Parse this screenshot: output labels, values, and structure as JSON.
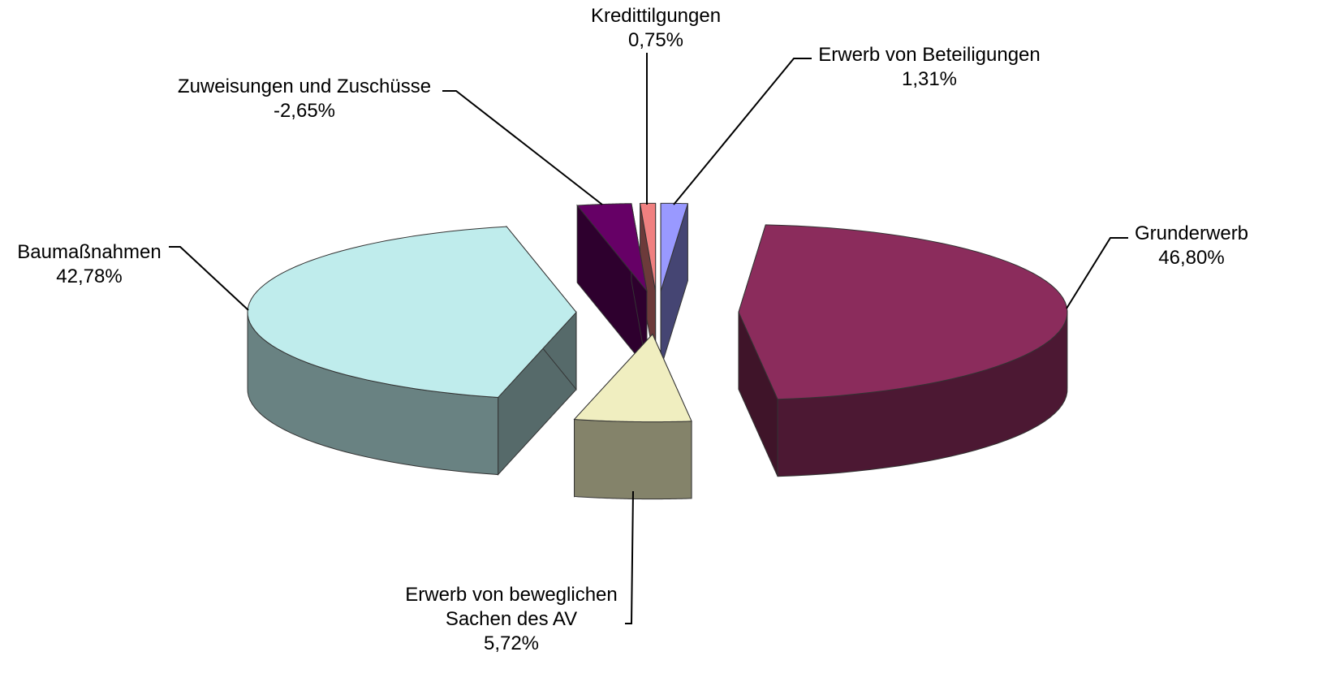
{
  "chart_data": {
    "type": "pie3d",
    "categories": [
      "Erwerb von Beteiligungen",
      "Grunderwerb",
      "Erwerb von beweglichen Sachen des AV",
      "Baumaßnahmen",
      "Zuweisungen und Zuschüsse",
      "Kredittilgungen"
    ],
    "values": [
      1.31,
      46.8,
      5.72,
      42.78,
      -2.65,
      0.75
    ],
    "value_labels": [
      "1,31%",
      "46,80%",
      "5,72%",
      "42,78%",
      "-2,65%",
      "0,75%"
    ],
    "colors": [
      "#9999ff",
      "#8b2c5c",
      "#f0eec0",
      "#bfecec",
      "#660066",
      "#f08080"
    ]
  }
}
